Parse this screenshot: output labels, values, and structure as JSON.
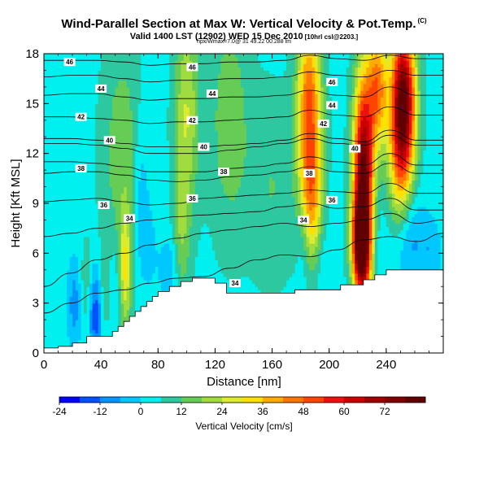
{
  "header": {
    "title": "Wind-Parallel Section at Max W: Vertical Velocity & Pot.Temp.",
    "title_mark": "(C)",
    "subtitle": "Valid 1400 LST (12902) WED 15 Dec 2010",
    "subtitle_small": "[10hrl csl@2203.]",
    "subtitle2": "hpx/Wmax=7.0@ 31 49.22 00.288 lm"
  },
  "chart_data": {
    "type": "heatmap",
    "title": "Wind-Parallel Section at Max W: Vertical Velocity & Pot.Temp.",
    "xlabel": "Distance [nm]",
    "ylabel": "Height [Kft MSL]",
    "xlim": [
      0,
      280
    ],
    "ylim": [
      0,
      18
    ],
    "x_ticks": [
      "0",
      "40",
      "80",
      "120",
      "160",
      "200",
      "240"
    ],
    "x_tick_values": [
      0,
      40,
      80,
      120,
      160,
      200,
      240
    ],
    "y_ticks": [
      "0",
      "3",
      "6",
      "9",
      "12",
      "15",
      "18"
    ],
    "y_tick_values": [
      0,
      3,
      6,
      9,
      12,
      15,
      18
    ],
    "colorbar": {
      "label": "Vertical Velocity [cm/s]",
      "min": -24,
      "max": 84,
      "step": 6,
      "tick_labels": [
        "-24",
        "-12",
        "0",
        "12",
        "24",
        "36",
        "48",
        "60",
        "72"
      ],
      "tick_values": [
        -24,
        -12,
        0,
        12,
        24,
        36,
        48,
        60,
        72
      ],
      "colors": [
        "#0000ff",
        "#0050ff",
        "#0094ff",
        "#00c8ff",
        "#00f0f0",
        "#2ec8a0",
        "#66cc55",
        "#a0dc40",
        "#dcea30",
        "#ffe000",
        "#ffaa00",
        "#ff7700",
        "#ff4400",
        "#ee1010",
        "#cc0000",
        "#a00000",
        "#800000",
        "#600000"
      ]
    },
    "background_value": 4,
    "updraft_cores": [
      {
        "x": 224,
        "z": 10.0,
        "value": 80,
        "sx": 5,
        "sz": 4.5
      },
      {
        "x": 222,
        "z": 6.5,
        "value": 55,
        "sx": 4,
        "sz": 1.8
      },
      {
        "x": 252,
        "z": 15.5,
        "value": 70,
        "sx": 6,
        "sz": 3.0
      },
      {
        "x": 250,
        "z": 11.5,
        "value": 30,
        "sx": 6,
        "sz": 3.0
      },
      {
        "x": 186,
        "z": 14.5,
        "value": 46,
        "sx": 6,
        "sz": 4.0
      },
      {
        "x": 188,
        "z": 9.0,
        "value": 24,
        "sx": 5,
        "sz": 2.5
      },
      {
        "x": 234,
        "z": 16.0,
        "value": 40,
        "sx": 5,
        "sz": 2.5
      },
      {
        "x": 100,
        "z": 14.5,
        "value": 20,
        "sx": 6,
        "sz": 4.5
      },
      {
        "x": 96,
        "z": 7.0,
        "value": 12,
        "sx": 4,
        "sz": 3.0
      },
      {
        "x": 130,
        "z": 14.0,
        "value": 12,
        "sx": 10,
        "sz": 5.0
      },
      {
        "x": 55,
        "z": 12.0,
        "value": 12,
        "sx": 10,
        "sz": 5.0
      },
      {
        "x": 57,
        "z": 5.0,
        "value": 24,
        "sx": 3,
        "sz": 2.5
      },
      {
        "x": 30,
        "z": 3.5,
        "value": 12,
        "sx": 4,
        "sz": 2.0
      },
      {
        "x": 42,
        "z": 3.5,
        "value": 10,
        "sx": 3,
        "sz": 2.0
      },
      {
        "x": 160,
        "z": 10.0,
        "value": 8,
        "sx": 12,
        "sz": 4.0
      }
    ],
    "downdraft_cores": [
      {
        "x": 36,
        "z": 2.5,
        "value": -24,
        "sx": 4,
        "sz": 2.0
      },
      {
        "x": 22,
        "z": 3.0,
        "value": -14,
        "sx": 4,
        "sz": 2.0
      },
      {
        "x": 50,
        "z": 4.0,
        "value": -6,
        "sx": 4,
        "sz": 2.0
      },
      {
        "x": 68,
        "z": 9.5,
        "value": -10,
        "sx": 4,
        "sz": 3.5
      },
      {
        "x": 74,
        "z": 6.5,
        "value": -6,
        "sx": 4,
        "sz": 2.0
      },
      {
        "x": 88,
        "z": 5.0,
        "value": -10,
        "sx": 5,
        "sz": 1.5
      },
      {
        "x": 182,
        "z": 6.5,
        "value": -6,
        "sx": 3,
        "sz": 2.0
      },
      {
        "x": 196,
        "z": 5.5,
        "value": -4,
        "sx": 4,
        "sz": 1.5
      },
      {
        "x": 232,
        "z": 7.5,
        "value": -6,
        "sx": 4,
        "sz": 2.0
      },
      {
        "x": 256,
        "z": 7.0,
        "value": -14,
        "sx": 8,
        "sz": 2.0
      },
      {
        "x": 272,
        "z": 6.0,
        "value": -8,
        "sx": 5,
        "sz": 1.5
      }
    ],
    "terrain": [
      [
        0,
        0.3
      ],
      [
        5,
        0.3
      ],
      [
        10,
        0.4
      ],
      [
        20,
        0.6
      ],
      [
        30,
        1.0
      ],
      [
        44,
        1.0
      ],
      [
        48,
        1.3
      ],
      [
        52,
        1.6
      ],
      [
        56,
        1.9
      ],
      [
        60,
        2.2
      ],
      [
        64,
        2.5
      ],
      [
        68,
        2.8
      ],
      [
        72,
        3.1
      ],
      [
        76,
        3.4
      ],
      [
        80,
        3.7
      ],
      [
        88,
        4.0
      ],
      [
        96,
        4.3
      ],
      [
        104,
        4.5
      ],
      [
        120,
        4.2
      ],
      [
        128,
        3.6
      ],
      [
        168,
        3.6
      ],
      [
        176,
        3.8
      ],
      [
        196,
        3.8
      ],
      [
        208,
        4.1
      ],
      [
        224,
        4.4
      ],
      [
        232,
        4.7
      ],
      [
        240,
        5.0
      ],
      [
        280,
        5.0
      ]
    ],
    "theta_isolines": [
      {
        "value": "34",
        "z": [
          2.4,
          3.0,
          3.6,
          3.8,
          4.2,
          4.5,
          4.6,
          5.1,
          5.6,
          5.9,
          5.8,
          6.2,
          6.8,
          7.0,
          6.7,
          7.2
        ]
      },
      {
        "value": "",
        "z": [
          4.0,
          4.8,
          5.6,
          6.0,
          6.5,
          6.9,
          7.2,
          7.4,
          7.6,
          7.8,
          7.6,
          7.8,
          8.0,
          8.4,
          7.8,
          8.0
        ]
      },
      {
        "value": "34",
        "z": [
          7.0,
          7.2,
          7.5,
          7.8,
          8.0,
          8.2,
          8.3,
          8.4,
          8.5,
          8.8,
          9.0,
          8.7,
          8.8,
          9.3,
          8.6,
          8.6
        ]
      },
      {
        "value": "36",
        "z": [
          9.1,
          9.2,
          9.3,
          9.1,
          8.9,
          9.0,
          9.3,
          9.4,
          9.5,
          9.6,
          9.8,
          9.7,
          9.6,
          10.2,
          9.6,
          9.6
        ]
      },
      {
        "value": "36",
        "z": [
          10.8,
          10.9,
          10.9,
          10.7,
          10.4,
          10.3,
          10.4,
          10.6,
          10.7,
          10.9,
          11.2,
          10.9,
          10.8,
          11.4,
          10.8,
          10.8
        ]
      },
      {
        "value": "38",
        "z": [
          11.5,
          11.5,
          11.4,
          11.2,
          10.9,
          10.9,
          10.9,
          11.1,
          11.2,
          11.4,
          11.8,
          11.5,
          11.3,
          12.0,
          11.3,
          11.3
        ]
      },
      {
        "value": "40",
        "z": [
          12.6,
          12.6,
          12.5,
          12.3,
          12.0,
          12.0,
          12.0,
          12.2,
          12.4,
          12.6,
          12.9,
          12.6,
          12.5,
          13.1,
          12.5,
          12.5
        ]
      },
      {
        "value": "40",
        "z": [
          12.9,
          12.9,
          12.8,
          12.6,
          12.4,
          12.4,
          12.4,
          12.5,
          12.6,
          12.8,
          13.2,
          12.9,
          12.7,
          13.4,
          12.8,
          12.8
        ]
      },
      {
        "value": "42",
        "z": [
          14.2,
          14.2,
          14.1,
          14.0,
          13.8,
          13.9,
          13.9,
          14.0,
          14.1,
          14.2,
          14.6,
          14.3,
          14.2,
          14.8,
          14.3,
          14.3
        ]
      },
      {
        "value": "44",
        "z": [
          15.5,
          15.6,
          15.6,
          15.4,
          15.2,
          15.3,
          15.3,
          15.4,
          15.4,
          15.5,
          15.8,
          15.5,
          15.4,
          16.0,
          15.5,
          15.5
        ]
      },
      {
        "value": "46",
        "z": [
          16.6,
          16.7,
          16.7,
          16.5,
          16.3,
          16.4,
          16.4,
          16.5,
          16.5,
          16.6,
          16.9,
          16.7,
          16.6,
          17.0,
          16.7,
          16.7
        ]
      },
      {
        "value": "46",
        "z": [
          17.6,
          17.6,
          17.6,
          17.5,
          17.3,
          17.4,
          17.4,
          17.5,
          17.5,
          17.6,
          17.9,
          17.7,
          17.6,
          17.9,
          17.7,
          17.7
        ]
      }
    ],
    "theta_labels": [
      {
        "text": "46",
        "x": 18,
        "z": 17.5
      },
      {
        "text": "46",
        "x": 104,
        "z": 17.2
      },
      {
        "text": "46",
        "x": 202,
        "z": 16.3
      },
      {
        "text": "44",
        "x": 40,
        "z": 15.9
      },
      {
        "text": "44",
        "x": 118,
        "z": 15.6
      },
      {
        "text": "44",
        "x": 202,
        "z": 14.9
      },
      {
        "text": "42",
        "x": 26,
        "z": 14.2
      },
      {
        "text": "42",
        "x": 104,
        "z": 14.0
      },
      {
        "text": "42",
        "x": 196,
        "z": 13.8
      },
      {
        "text": "40",
        "x": 46,
        "z": 12.8
      },
      {
        "text": "40",
        "x": 112,
        "z": 12.4
      },
      {
        "text": "40",
        "x": 218,
        "z": 12.3
      },
      {
        "text": "38",
        "x": 26,
        "z": 11.1
      },
      {
        "text": "38",
        "x": 126,
        "z": 10.9
      },
      {
        "text": "38",
        "x": 186,
        "z": 10.8
      },
      {
        "text": "36",
        "x": 42,
        "z": 8.9
      },
      {
        "text": "36",
        "x": 104,
        "z": 9.3
      },
      {
        "text": "36",
        "x": 202,
        "z": 9.2
      },
      {
        "text": "34",
        "x": 60,
        "z": 8.1
      },
      {
        "text": "34",
        "x": 182,
        "z": 8.0
      },
      {
        "text": "34",
        "x": 134,
        "z": 4.2
      }
    ]
  }
}
